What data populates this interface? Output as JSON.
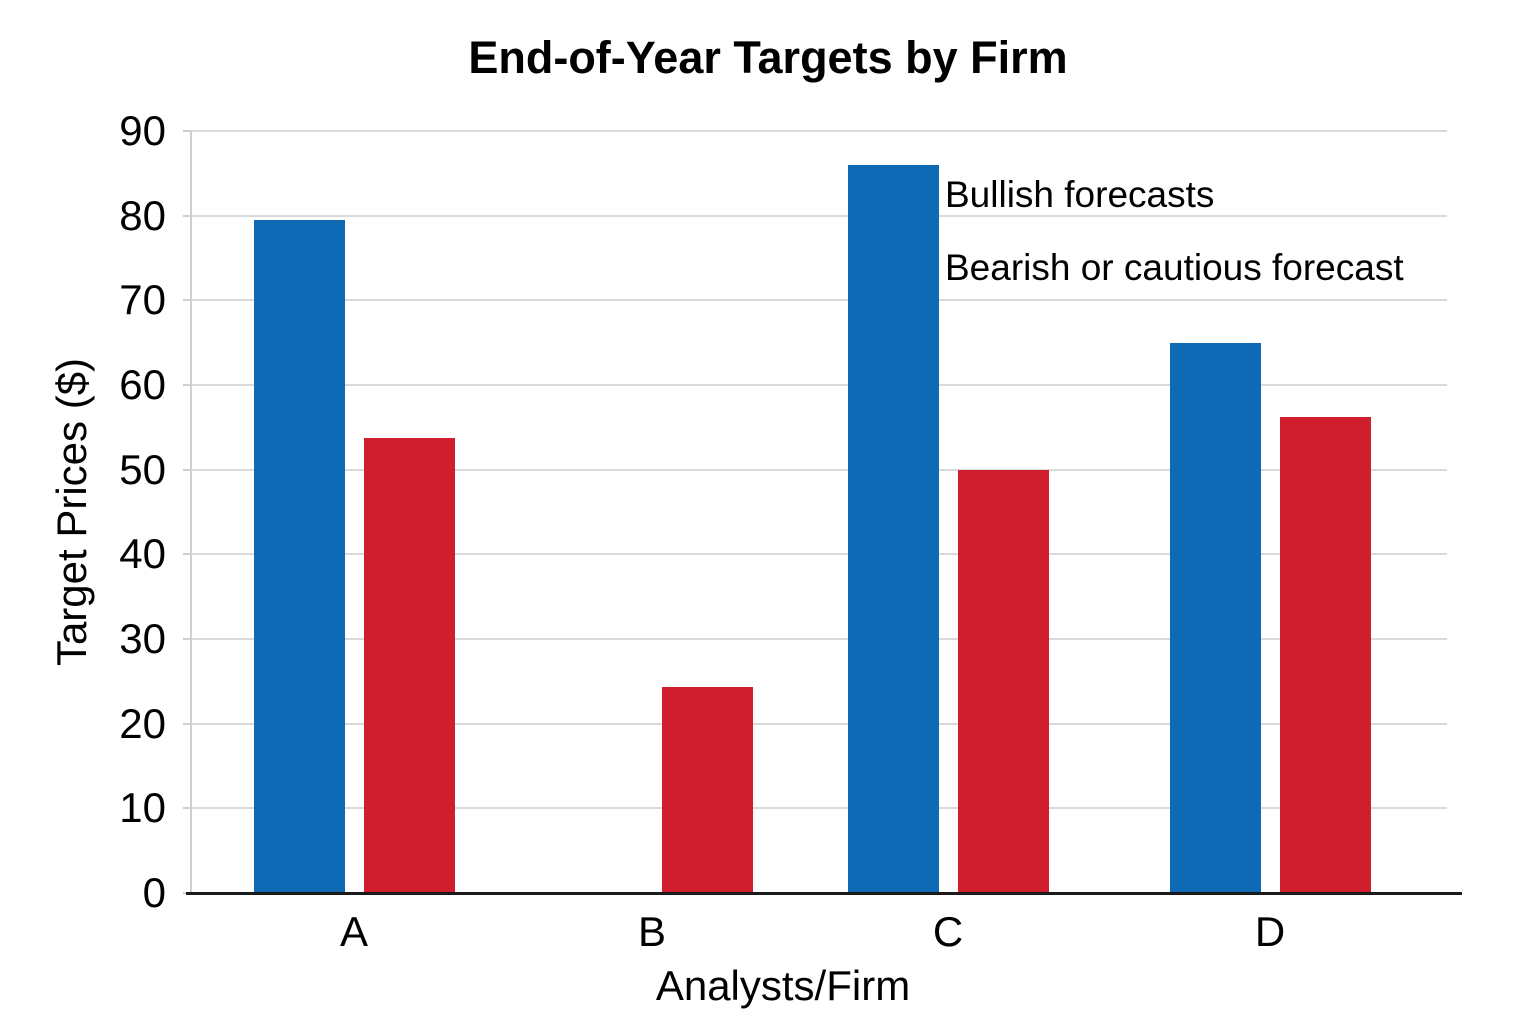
{
  "chart_data": {
    "type": "bar",
    "title": "End-of-Year Targets by Firm",
    "xlabel": "Analysts/Firm",
    "ylabel": "Target Prices ($)",
    "categories": [
      "A",
      "B",
      "C",
      "D"
    ],
    "series": [
      {
        "name": "Bullish forecasts",
        "color": "#0f6ab5",
        "values": [
          79.5,
          null,
          86,
          65
        ]
      },
      {
        "name": "Bearish or cautious forecast",
        "color": "#d01e2e",
        "values": [
          53.7,
          24.3,
          50,
          56.2
        ]
      }
    ],
    "ylim": [
      0,
      90
    ],
    "yticks": [
      0,
      10,
      20,
      30,
      40,
      50,
      60,
      70,
      80,
      90
    ],
    "grid": "horizontal",
    "legend_position": "top-right-inside",
    "legend_style": "text-only",
    "colors": {
      "bullish": "#0f6ab5",
      "bearish": "#d01e2e",
      "gridline": "#d9d9d9",
      "axis_line": "#1a1a1a",
      "text": "#000000",
      "background": "#ffffff"
    }
  }
}
